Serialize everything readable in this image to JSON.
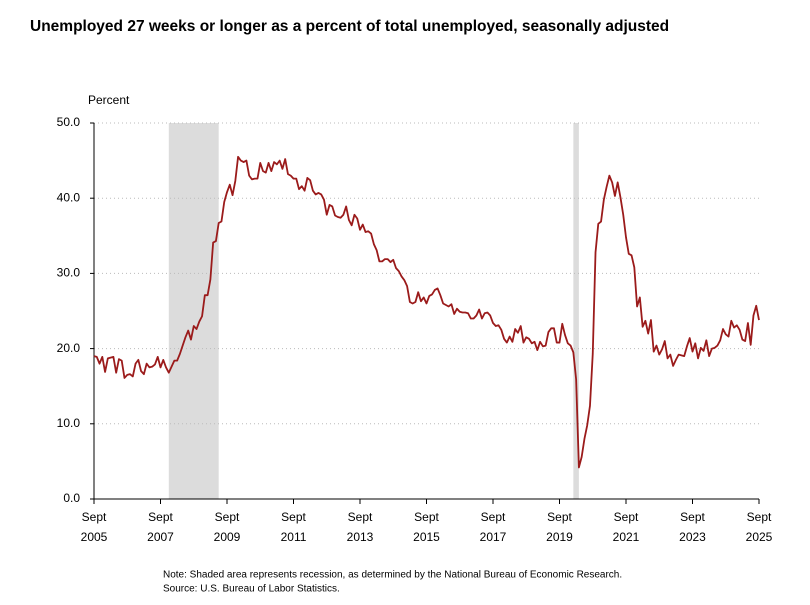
{
  "chart_data": {
    "type": "line",
    "title": "Unemployed 27 weeks or longer as a percent of total unemployed, seasonally adjusted",
    "y_label": "Percent",
    "note": "Note: Shaded area represents recession, as determined by the National Bureau of Economic Research.",
    "source": "Source: U.S. Bureau of Labor Statistics.",
    "color": "#9b1b1b",
    "recession_color": "#dcdcdc",
    "grid": true,
    "ylim": [
      0,
      50
    ],
    "yticks": [
      {
        "value": 0,
        "label": "0.0"
      },
      {
        "value": 10,
        "label": "10.0"
      },
      {
        "value": 20,
        "label": "20.0"
      },
      {
        "value": 30,
        "label": "30.0"
      },
      {
        "value": 40,
        "label": "40.0"
      },
      {
        "value": 50,
        "label": "50.0"
      }
    ],
    "xlim": [
      "2005-09",
      "2025-09"
    ],
    "xticks": [
      {
        "value": "2005-09",
        "month": "Sept",
        "year": "2005"
      },
      {
        "value": "2007-09",
        "month": "Sept",
        "year": "2007"
      },
      {
        "value": "2009-09",
        "month": "Sept",
        "year": "2009"
      },
      {
        "value": "2011-09",
        "month": "Sept",
        "year": "2011"
      },
      {
        "value": "2013-09",
        "month": "Sept",
        "year": "2013"
      },
      {
        "value": "2015-09",
        "month": "Sept",
        "year": "2015"
      },
      {
        "value": "2017-09",
        "month": "Sept",
        "year": "2017"
      },
      {
        "value": "2019-09",
        "month": "Sept",
        "year": "2019"
      },
      {
        "value": "2021-09",
        "month": "Sept",
        "year": "2021"
      },
      {
        "value": "2023-09",
        "month": "Sept",
        "year": "2023"
      },
      {
        "value": "2025-09",
        "month": "Sept",
        "year": "2025"
      }
    ],
    "recessions": [
      [
        "2007-12",
        "2009-06"
      ],
      [
        "2020-02",
        "2020-04"
      ]
    ],
    "x": [
      "2005-09",
      "2005-10",
      "2005-11",
      "2005-12",
      "2006-01",
      "2006-02",
      "2006-03",
      "2006-04",
      "2006-05",
      "2006-06",
      "2006-07",
      "2006-08",
      "2006-09",
      "2006-10",
      "2006-11",
      "2006-12",
      "2007-01",
      "2007-02",
      "2007-03",
      "2007-04",
      "2007-05",
      "2007-06",
      "2007-07",
      "2007-08",
      "2007-09",
      "2007-10",
      "2007-11",
      "2007-12",
      "2008-01",
      "2008-02",
      "2008-03",
      "2008-04",
      "2008-05",
      "2008-06",
      "2008-07",
      "2008-08",
      "2008-09",
      "2008-10",
      "2008-11",
      "2008-12",
      "2009-01",
      "2009-02",
      "2009-03",
      "2009-04",
      "2009-05",
      "2009-06",
      "2009-07",
      "2009-08",
      "2009-09",
      "2009-10",
      "2009-11",
      "2009-12",
      "2010-01",
      "2010-02",
      "2010-03",
      "2010-04",
      "2010-05",
      "2010-06",
      "2010-07",
      "2010-08",
      "2010-09",
      "2010-10",
      "2010-11",
      "2010-12",
      "2011-01",
      "2011-02",
      "2011-03",
      "2011-04",
      "2011-05",
      "2011-06",
      "2011-07",
      "2011-08",
      "2011-09",
      "2011-10",
      "2011-11",
      "2011-12",
      "2012-01",
      "2012-02",
      "2012-03",
      "2012-04",
      "2012-05",
      "2012-06",
      "2012-07",
      "2012-08",
      "2012-09",
      "2012-10",
      "2012-11",
      "2012-12",
      "2013-01",
      "2013-02",
      "2013-03",
      "2013-04",
      "2013-05",
      "2013-06",
      "2013-07",
      "2013-08",
      "2013-09",
      "2013-10",
      "2013-11",
      "2013-12",
      "2014-01",
      "2014-02",
      "2014-03",
      "2014-04",
      "2014-05",
      "2014-06",
      "2014-07",
      "2014-08",
      "2014-09",
      "2014-10",
      "2014-11",
      "2014-12",
      "2015-01",
      "2015-02",
      "2015-03",
      "2015-04",
      "2015-05",
      "2015-06",
      "2015-07",
      "2015-08",
      "2015-09",
      "2015-10",
      "2015-11",
      "2015-12",
      "2016-01",
      "2016-02",
      "2016-03",
      "2016-04",
      "2016-05",
      "2016-06",
      "2016-07",
      "2016-08",
      "2016-09",
      "2016-10",
      "2016-11",
      "2016-12",
      "2017-01",
      "2017-02",
      "2017-03",
      "2017-04",
      "2017-05",
      "2017-06",
      "2017-07",
      "2017-08",
      "2017-09",
      "2017-10",
      "2017-11",
      "2017-12",
      "2018-01",
      "2018-02",
      "2018-03",
      "2018-04",
      "2018-05",
      "2018-06",
      "2018-07",
      "2018-08",
      "2018-09",
      "2018-10",
      "2018-11",
      "2018-12",
      "2019-01",
      "2019-02",
      "2019-03",
      "2019-04",
      "2019-05",
      "2019-06",
      "2019-07",
      "2019-08",
      "2019-09",
      "2019-10",
      "2019-11",
      "2019-12",
      "2020-01",
      "2020-02",
      "2020-03",
      "2020-04",
      "2020-05",
      "2020-06",
      "2020-07",
      "2020-08",
      "2020-09",
      "2020-10",
      "2020-11",
      "2020-12",
      "2021-01",
      "2021-02",
      "2021-03",
      "2021-04",
      "2021-05",
      "2021-06",
      "2021-07",
      "2021-08",
      "2021-09",
      "2021-10",
      "2021-11",
      "2021-12",
      "2022-01",
      "2022-02",
      "2022-03",
      "2022-04",
      "2022-05",
      "2022-06",
      "2022-07",
      "2022-08",
      "2022-09",
      "2022-10",
      "2022-11",
      "2022-12",
      "2023-01",
      "2023-02",
      "2023-03",
      "2023-04",
      "2023-05",
      "2023-06",
      "2023-07",
      "2023-08",
      "2023-09",
      "2023-10",
      "2023-11",
      "2023-12",
      "2024-01",
      "2024-02",
      "2024-03",
      "2024-04",
      "2024-05",
      "2024-06",
      "2024-07",
      "2024-08",
      "2024-09",
      "2024-10",
      "2024-11",
      "2024-12",
      "2025-01",
      "2025-02",
      "2025-03",
      "2025-04",
      "2025-05",
      "2025-06",
      "2025-07",
      "2025-08",
      "2025-09"
    ],
    "values": [
      19.0,
      18.9,
      18.0,
      18.9,
      16.9,
      18.7,
      18.8,
      18.9,
      16.8,
      18.6,
      18.4,
      16.1,
      16.5,
      16.6,
      16.3,
      18.0,
      18.5,
      17.0,
      16.6,
      18.0,
      17.5,
      17.6,
      17.9,
      18.9,
      17.5,
      18.5,
      17.5,
      16.8,
      17.6,
      18.4,
      18.4,
      19.3,
      20.4,
      21.5,
      22.4,
      21.2,
      23.0,
      22.6,
      23.6,
      24.3,
      27.1,
      27.1,
      29.2,
      34.1,
      34.3,
      36.7,
      36.9,
      39.5,
      40.8,
      41.8,
      40.4,
      42.3,
      45.5,
      45.0,
      44.8,
      45.0,
      43.0,
      42.5,
      42.6,
      42.6,
      44.7,
      43.6,
      43.4,
      44.7,
      43.6,
      44.8,
      44.5,
      45.0,
      43.9,
      45.2,
      43.2,
      43.0,
      42.6,
      42.6,
      41.2,
      41.6,
      41.0,
      42.7,
      42.4,
      41.0,
      40.5,
      40.7,
      40.5,
      39.8,
      37.8,
      39.1,
      38.9,
      37.7,
      37.5,
      37.4,
      37.8,
      38.9,
      37.1,
      36.4,
      37.8,
      37.3,
      35.8,
      36.5,
      35.5,
      35.6,
      35.3,
      33.9,
      33.1,
      31.6,
      31.6,
      31.9,
      31.9,
      31.5,
      31.8,
      30.7,
      30.3,
      29.6,
      29.1,
      28.3,
      26.2,
      26.0,
      26.2,
      27.5,
      26.3,
      26.8,
      26.0,
      27.0,
      27.2,
      27.8,
      28.0,
      27.1,
      26.0,
      25.8,
      25.6,
      25.9,
      24.6,
      25.3,
      24.9,
      24.8,
      24.8,
      24.7,
      24.0,
      24.0,
      24.4,
      25.2,
      24.0,
      24.7,
      24.8,
      24.4,
      23.4,
      23.0,
      23.1,
      22.5,
      21.3,
      20.8,
      21.6,
      20.9,
      22.6,
      22.1,
      23.0,
      20.8,
      21.5,
      21.3,
      20.7,
      20.9,
      19.8,
      20.9,
      20.3,
      20.4,
      22.2,
      22.7,
      22.7,
      20.8,
      20.8,
      23.3,
      21.8,
      20.7,
      20.4,
      19.5,
      15.9,
      4.2,
      5.6,
      8.0,
      9.8,
      12.4,
      19.3,
      32.8,
      36.6,
      36.9,
      39.8,
      41.5,
      43.0,
      42.1,
      40.3,
      42.1,
      40.1,
      37.8,
      34.8,
      32.6,
      32.4,
      30.8,
      25.6,
      26.8,
      22.9,
      23.7,
      22.0,
      23.8,
      19.6,
      20.4,
      19.2,
      19.9,
      21.0,
      18.7,
      19.2,
      17.7,
      18.5,
      19.2,
      19.1,
      19.0,
      20.3,
      21.4,
      19.6,
      20.7,
      18.7,
      20.1,
      19.7,
      21.1,
      19.0,
      20.0,
      20.1,
      20.4,
      21.1,
      22.6,
      21.9,
      21.6,
      23.7,
      22.8,
      23.1,
      22.5,
      21.2,
      21.0,
      23.4,
      20.5,
      24.4,
      25.7,
      23.8
    ]
  }
}
